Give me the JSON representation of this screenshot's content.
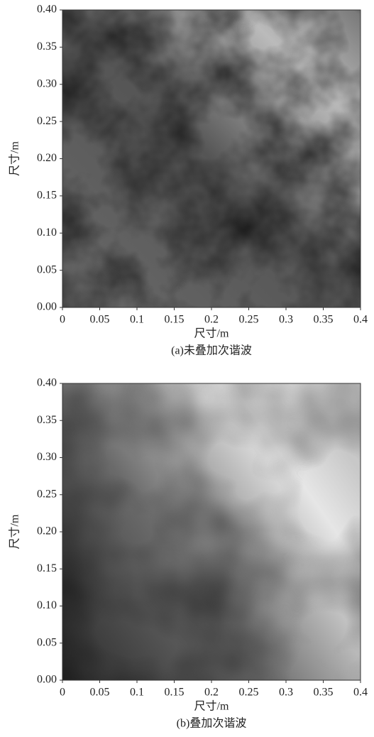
{
  "chart_data": [
    {
      "type": "heatmap",
      "caption": "(a)未叠加次谐波",
      "xlabel": "尺寸/m",
      "ylabel": "尺寸/m",
      "xlim": [
        0,
        0.4
      ],
      "ylim": [
        0,
        0.4
      ],
      "xticks": [
        0,
        0.05,
        0.1,
        0.15,
        0.2,
        0.25,
        0.3,
        0.35,
        0.4
      ],
      "yticks": [
        {
          "value": 0,
          "label": "0.00"
        },
        0.05,
        {
          "value": 0.1,
          "label": "0.10"
        },
        0.15,
        {
          "value": 0.2,
          "label": "0.20"
        },
        0.25,
        {
          "value": 0.3,
          "label": "0.30"
        },
        0.35,
        {
          "value": 0.4,
          "label": "0.40"
        }
      ]
    },
    {
      "type": "heatmap",
      "caption": "(b)叠加次谐波",
      "xlabel": "尺寸/m",
      "ylabel": "尺寸/m",
      "xlim": [
        0,
        0.4
      ],
      "ylim": [
        0,
        0.4
      ],
      "xticks": [
        0,
        0.05,
        0.1,
        0.15,
        0.2,
        0.25,
        0.3,
        0.35,
        0.4
      ],
      "yticks": [
        {
          "value": 0,
          "label": "0.00"
        },
        0.05,
        {
          "value": 0.1,
          "label": "0.10"
        },
        0.15,
        {
          "value": 0.2,
          "label": "0.20"
        },
        0.25,
        {
          "value": 0.3,
          "label": "0.30"
        },
        0.35,
        {
          "value": 0.4,
          "label": "0.40"
        }
      ]
    }
  ]
}
